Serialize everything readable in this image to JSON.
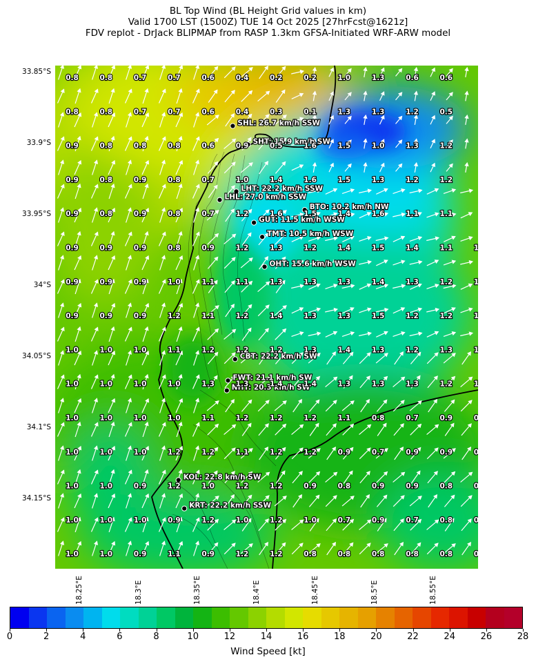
{
  "header": {
    "line1": "BL Top Wind (BL Height Grid values in km)",
    "line2": "Valid 1700 LST (1500Z) TUE 14 Oct 2025 [27hrFcst@1621z]",
    "line3": "FDV replot - DrJack BLIPMAP from RASP 1.3km GFSA-Initiated WRF-ARW model"
  },
  "axes": {
    "lat_labels": [
      "33.85°S",
      "33.9°S",
      "33.95°S",
      "34°S",
      "34.05°S",
      "34.1°S",
      "34.15°S"
    ],
    "lon_labels": [
      "18.25°E",
      "18.3°E",
      "18.35°E",
      "18.4°E",
      "18.45°E",
      "18.5°E",
      "18.55°E"
    ]
  },
  "bl_height_grid": [
    [
      "0.8",
      "0.8",
      "0.7",
      "0.7",
      "0.6",
      "0.4",
      "0.2",
      "0.2",
      "1.0",
      "1.3",
      "0.6",
      "0.6",
      ""
    ],
    [
      "0.8",
      "0.8",
      "0.7",
      "0.7",
      "0.6",
      "0.4",
      "0.3",
      "0.1",
      "1.3",
      "1.3",
      "1.2",
      "0.5",
      ""
    ],
    [
      "0.9",
      "0.8",
      "0.8",
      "0.8",
      "0.6",
      "0.9",
      "0.5",
      "1.6",
      "1.5",
      "1.0",
      "1.3",
      "1.2",
      ""
    ],
    [
      "0.9",
      "0.8",
      "0.9",
      "0.8",
      "0.7",
      "1.0",
      "1.4",
      "1.6",
      "1.5",
      "1.3",
      "1.2",
      "1.2",
      ""
    ],
    [
      "0.9",
      "0.8",
      "0.9",
      "0.8",
      "0.7",
      "1.2",
      "1.6",
      "1.5",
      "1.4",
      "1.6",
      "1.1",
      "1.1",
      ""
    ],
    [
      "0.9",
      "0.9",
      "0.9",
      "0.8",
      "0.9",
      "1.2",
      "1.3",
      "1.2",
      "1.4",
      "1.5",
      "1.4",
      "1.1",
      "1.0"
    ],
    [
      "0.9",
      "0.9",
      "0.9",
      "1.0",
      "1.1",
      "1.1",
      "1.3",
      "1.3",
      "1.3",
      "1.4",
      "1.3",
      "1.2",
      "1.1"
    ],
    [
      "0.9",
      "0.9",
      "0.9",
      "1.2",
      "1.1",
      "1.2",
      "1.4",
      "1.3",
      "1.3",
      "1.5",
      "1.2",
      "1.2",
      "1.3"
    ],
    [
      "1.0",
      "1.0",
      "1.0",
      "1.1",
      "1.2",
      "1.2",
      "1.2",
      "1.3",
      "1.4",
      "1.3",
      "1.2",
      "1.3",
      "1.3"
    ],
    [
      "1.0",
      "1.0",
      "1.0",
      "1.0",
      "1.3",
      "1.3",
      "1.4",
      "1.4",
      "1.3",
      "1.3",
      "1.3",
      "1.2",
      "1.0"
    ],
    [
      "1.0",
      "1.0",
      "1.0",
      "1.0",
      "1.1",
      "1.2",
      "1.2",
      "1.2",
      "1.1",
      "0.8",
      "0.7",
      "0.9",
      "0.9"
    ],
    [
      "1.0",
      "1.0",
      "1.0",
      "1.2",
      "1.2",
      "1.1",
      "1.2",
      "1.2",
      "0.9",
      "0.7",
      "0.9",
      "0.9",
      "0.8"
    ],
    [
      "1.0",
      "1.0",
      "0.9",
      "1.2",
      "1.0",
      "1.2",
      "1.2",
      "0.9",
      "0.8",
      "0.9",
      "0.9",
      "0.8",
      "0.8"
    ],
    [
      "1.0",
      "1.0",
      "1.0",
      "0.9",
      "1.2",
      "1.0",
      "1.2",
      "1.0",
      "0.7",
      "0.9",
      "0.7",
      "0.8",
      "0.8"
    ],
    [
      "1.0",
      "1.0",
      "0.9",
      "1.1",
      "0.9",
      "1.2",
      "1.2",
      "0.8",
      "0.8",
      "0.8",
      "0.8",
      "0.8",
      "0.8"
    ]
  ],
  "stations": [
    {
      "code": "SHL",
      "label": "SHL: 26.7 km/h SSW",
      "lon": 18.38,
      "lat": -33.888
    },
    {
      "code": "SHT",
      "label": "SHT: 15.9 km/h SW",
      "lon": 18.393,
      "lat": -33.901
    },
    {
      "code": "LHT",
      "label": "LHT: 22.2 km/h SSW",
      "lon": 18.383,
      "lat": -33.934
    },
    {
      "code": "LHL",
      "label": "LHL: 27.0 km/h SSW",
      "lon": 18.369,
      "lat": -33.94
    },
    {
      "code": "BTO",
      "label": "BTO: 10.2 km/h NW",
      "lon": 18.441,
      "lat": -33.947
    },
    {
      "code": "GUT",
      "label": "GUT: 11.5 km/h WSW",
      "lon": 18.398,
      "lat": -33.956
    },
    {
      "code": "TMT",
      "label": "TMT: 10.5 km/h WSW",
      "lon": 18.405,
      "lat": -33.966
    },
    {
      "code": "OHT",
      "label": "OHT: 15.6 km/h WSW",
      "lon": 18.407,
      "lat": -33.987
    },
    {
      "code": "CBT",
      "label": "CBT: 22.2 km/h SW",
      "lon": 18.382,
      "lat": -34.052
    },
    {
      "code": "FWT",
      "label": "FWT: 21.1 km/h SW",
      "lon": 18.376,
      "lat": -34.067
    },
    {
      "code": "NHT",
      "label": "NHT: 20.3 km/h SW",
      "lon": 18.375,
      "lat": -34.074
    },
    {
      "code": "KOL",
      "label": "KOL: 22.8 km/h SW",
      "lon": 18.334,
      "lat": -34.137
    },
    {
      "code": "KRT",
      "label": "KRT: 22.2 km/h SSW",
      "lon": 18.339,
      "lat": -34.157
    }
  ],
  "colorbar": {
    "label": "Wind Speed [kt]",
    "ticks": [
      "0",
      "2",
      "4",
      "6",
      "8",
      "10",
      "12",
      "14",
      "16",
      "18",
      "20",
      "22",
      "24",
      "26",
      "28"
    ],
    "colors": [
      "#0000f0",
      "#0a36f0",
      "#0a64f0",
      "#0a8cf0",
      "#00b4f0",
      "#00dcec",
      "#00dcc0",
      "#00d296",
      "#00c864",
      "#00b43c",
      "#14b414",
      "#3cbe00",
      "#64c800",
      "#8cd200",
      "#b4dc00",
      "#d2e600",
      "#e6dc00",
      "#e6c800",
      "#e6b400",
      "#e6a000",
      "#e68200",
      "#e66400",
      "#e64600",
      "#e62800",
      "#dc1400",
      "#c80000",
      "#b4001e",
      "#b4002a"
    ]
  },
  "wind_arrow_color": "#ffffff"
}
